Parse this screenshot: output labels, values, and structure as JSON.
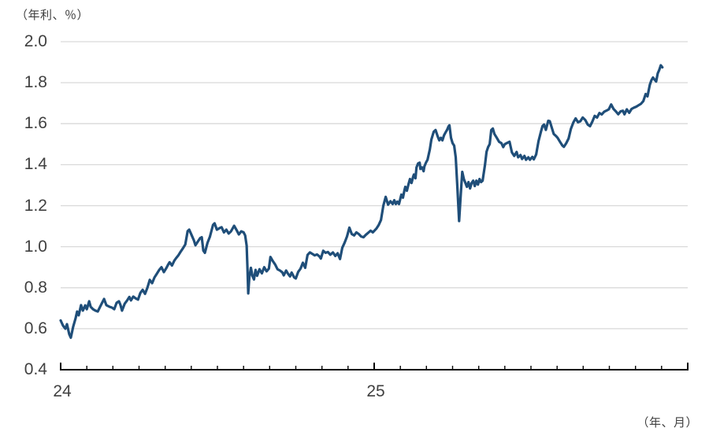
{
  "page": {
    "background": "#ffffff"
  },
  "colors": {
    "line": "#1f4e79",
    "grid": "#d9d9d9",
    "axis": "#000000",
    "text": "#404040"
  },
  "chart_data": {
    "type": "line",
    "title": "",
    "y_unit_label": "（年利、％）",
    "x_unit_label": "（年、月）",
    "grid": true,
    "legend_position": "none",
    "y_axis": {
      "min": 0.4,
      "max": 2.0,
      "step": 0.2,
      "tick_labels": [
        "2.0",
        "1.8",
        "1.6",
        "1.4",
        "1.2",
        "1.0",
        "0.8",
        "0.6",
        "0.4"
      ]
    },
    "x_axis": {
      "total_months": 24,
      "minor_tick_every_months": 1,
      "major_tick_positions_months": [
        0,
        12,
        24
      ],
      "year_labels": [
        {
          "position_months": 0,
          "label": "24"
        },
        {
          "position_months": 12,
          "label": "25"
        }
      ]
    },
    "series": [
      {
        "color": "#1f4e79",
        "points_months_value": [
          [
            0.0,
            0.64
          ],
          [
            0.09,
            0.615
          ],
          [
            0.18,
            0.6
          ],
          [
            0.24,
            0.622
          ],
          [
            0.33,
            0.573
          ],
          [
            0.39,
            0.556
          ],
          [
            0.48,
            0.61
          ],
          [
            0.57,
            0.65
          ],
          [
            0.63,
            0.684
          ],
          [
            0.69,
            0.665
          ],
          [
            0.78,
            0.715
          ],
          [
            0.85,
            0.688
          ],
          [
            0.94,
            0.714
          ],
          [
            1.0,
            0.695
          ],
          [
            1.09,
            0.734
          ],
          [
            1.15,
            0.707
          ],
          [
            1.24,
            0.695
          ],
          [
            1.33,
            0.688
          ],
          [
            1.42,
            0.684
          ],
          [
            1.54,
            0.715
          ],
          [
            1.66,
            0.745
          ],
          [
            1.75,
            0.715
          ],
          [
            1.87,
            0.707
          ],
          [
            1.96,
            0.703
          ],
          [
            2.05,
            0.695
          ],
          [
            2.14,
            0.726
          ],
          [
            2.23,
            0.734
          ],
          [
            2.29,
            0.715
          ],
          [
            2.35,
            0.688
          ],
          [
            2.45,
            0.722
          ],
          [
            2.54,
            0.737
          ],
          [
            2.63,
            0.755
          ],
          [
            2.69,
            0.738
          ],
          [
            2.78,
            0.757
          ],
          [
            2.87,
            0.748
          ],
          [
            2.96,
            0.742
          ],
          [
            3.05,
            0.775
          ],
          [
            3.14,
            0.79
          ],
          [
            3.23,
            0.77
          ],
          [
            3.32,
            0.8
          ],
          [
            3.41,
            0.838
          ],
          [
            3.5,
            0.822
          ],
          [
            3.59,
            0.85
          ],
          [
            3.68,
            0.868
          ],
          [
            3.77,
            0.886
          ],
          [
            3.86,
            0.9
          ],
          [
            3.95,
            0.876
          ],
          [
            4.05,
            0.897
          ],
          [
            4.11,
            0.912
          ],
          [
            4.17,
            0.924
          ],
          [
            4.26,
            0.908
          ],
          [
            4.35,
            0.932
          ],
          [
            4.41,
            0.943
          ],
          [
            4.5,
            0.957
          ],
          [
            4.59,
            0.975
          ],
          [
            4.68,
            0.992
          ],
          [
            4.77,
            1.011
          ],
          [
            4.86,
            1.076
          ],
          [
            4.92,
            1.083
          ],
          [
            5.01,
            1.057
          ],
          [
            5.1,
            1.03
          ],
          [
            5.16,
            1.007
          ],
          [
            5.25,
            1.025
          ],
          [
            5.34,
            1.042
          ],
          [
            5.4,
            1.046
          ],
          [
            5.46,
            0.981
          ],
          [
            5.52,
            0.97
          ],
          [
            5.62,
            1.019
          ],
          [
            5.71,
            1.048
          ],
          [
            5.83,
            1.106
          ],
          [
            5.89,
            1.114
          ],
          [
            5.98,
            1.083
          ],
          [
            6.07,
            1.09
          ],
          [
            6.16,
            1.095
          ],
          [
            6.25,
            1.07
          ],
          [
            6.34,
            1.083
          ],
          [
            6.43,
            1.064
          ],
          [
            6.52,
            1.075
          ],
          [
            6.64,
            1.102
          ],
          [
            6.73,
            1.082
          ],
          [
            6.82,
            1.06
          ],
          [
            6.91,
            1.075
          ],
          [
            7.0,
            1.07
          ],
          [
            7.06,
            1.055
          ],
          [
            7.12,
            1.005
          ],
          [
            7.15,
            0.9
          ],
          [
            7.18,
            0.772
          ],
          [
            7.22,
            0.85
          ],
          [
            7.28,
            0.897
          ],
          [
            7.34,
            0.858
          ],
          [
            7.4,
            0.84
          ],
          [
            7.46,
            0.887
          ],
          [
            7.52,
            0.858
          ],
          [
            7.61,
            0.89
          ],
          [
            7.7,
            0.87
          ],
          [
            7.79,
            0.9
          ],
          [
            7.88,
            0.88
          ],
          [
            7.97,
            0.893
          ],
          [
            8.03,
            0.95
          ],
          [
            8.12,
            0.93
          ],
          [
            8.21,
            0.913
          ],
          [
            8.3,
            0.89
          ],
          [
            8.39,
            0.884
          ],
          [
            8.48,
            0.875
          ],
          [
            8.54,
            0.86
          ],
          [
            8.63,
            0.884
          ],
          [
            8.7,
            0.868
          ],
          [
            8.78,
            0.855
          ],
          [
            8.84,
            0.874
          ],
          [
            8.94,
            0.85
          ],
          [
            9.0,
            0.845
          ],
          [
            9.09,
            0.877
          ],
          [
            9.18,
            0.893
          ],
          [
            9.27,
            0.922
          ],
          [
            9.36,
            0.897
          ],
          [
            9.45,
            0.96
          ],
          [
            9.54,
            0.972
          ],
          [
            9.63,
            0.965
          ],
          [
            9.72,
            0.958
          ],
          [
            9.81,
            0.962
          ],
          [
            9.9,
            0.953
          ],
          [
            9.96,
            0.942
          ],
          [
            10.05,
            0.98
          ],
          [
            10.14,
            0.97
          ],
          [
            10.23,
            0.974
          ],
          [
            10.32,
            0.961
          ],
          [
            10.42,
            0.972
          ],
          [
            10.51,
            0.955
          ],
          [
            10.6,
            0.968
          ],
          [
            10.69,
            0.94
          ],
          [
            10.78,
            0.995
          ],
          [
            10.87,
            1.02
          ],
          [
            10.96,
            1.05
          ],
          [
            11.05,
            1.093
          ],
          [
            11.14,
            1.062
          ],
          [
            11.23,
            1.055
          ],
          [
            11.32,
            1.07
          ],
          [
            11.41,
            1.062
          ],
          [
            11.5,
            1.05
          ],
          [
            11.59,
            1.046
          ],
          [
            11.68,
            1.058
          ],
          [
            11.77,
            1.068
          ],
          [
            11.86,
            1.078
          ],
          [
            11.95,
            1.07
          ],
          [
            12.08,
            1.088
          ],
          [
            12.17,
            1.105
          ],
          [
            12.26,
            1.13
          ],
          [
            12.35,
            1.2
          ],
          [
            12.44,
            1.243
          ],
          [
            12.53,
            1.205
          ],
          [
            12.62,
            1.222
          ],
          [
            12.71,
            1.208
          ],
          [
            12.77,
            1.227
          ],
          [
            12.83,
            1.208
          ],
          [
            12.89,
            1.22
          ],
          [
            12.95,
            1.208
          ],
          [
            13.01,
            1.239
          ],
          [
            13.04,
            1.254
          ],
          [
            13.1,
            1.239
          ],
          [
            13.16,
            1.277
          ],
          [
            13.19,
            1.292
          ],
          [
            13.25,
            1.273
          ],
          [
            13.31,
            1.303
          ],
          [
            13.37,
            1.33
          ],
          [
            13.43,
            1.311
          ],
          [
            13.49,
            1.341
          ],
          [
            13.52,
            1.352
          ],
          [
            13.58,
            1.334
          ],
          [
            13.62,
            1.387
          ],
          [
            13.68,
            1.406
          ],
          [
            13.74,
            1.41
          ],
          [
            13.77,
            1.379
          ],
          [
            13.83,
            1.387
          ],
          [
            13.89,
            1.368
          ],
          [
            13.92,
            1.391
          ],
          [
            13.98,
            1.41
          ],
          [
            14.04,
            1.424
          ],
          [
            14.13,
            1.474
          ],
          [
            14.19,
            1.523
          ],
          [
            14.28,
            1.561
          ],
          [
            14.35,
            1.569
          ],
          [
            14.43,
            1.538
          ],
          [
            14.49,
            1.519
          ],
          [
            14.55,
            1.531
          ],
          [
            14.61,
            1.519
          ],
          [
            14.67,
            1.543
          ],
          [
            14.73,
            1.557
          ],
          [
            14.79,
            1.57
          ],
          [
            14.85,
            1.588
          ],
          [
            14.88,
            1.592
          ],
          [
            14.94,
            1.531
          ],
          [
            15.0,
            1.505
          ],
          [
            15.06,
            1.493
          ],
          [
            15.12,
            1.436
          ],
          [
            15.18,
            1.296
          ],
          [
            15.25,
            1.125
          ],
          [
            15.31,
            1.25
          ],
          [
            15.37,
            1.365
          ],
          [
            15.43,
            1.33
          ],
          [
            15.49,
            1.311
          ],
          [
            15.55,
            1.292
          ],
          [
            15.61,
            1.315
          ],
          [
            15.67,
            1.284
          ],
          [
            15.73,
            1.311
          ],
          [
            15.79,
            1.322
          ],
          [
            15.85,
            1.296
          ],
          [
            15.91,
            1.322
          ],
          [
            15.97,
            1.303
          ],
          [
            16.03,
            1.33
          ],
          [
            16.09,
            1.315
          ],
          [
            16.15,
            1.322
          ],
          [
            16.24,
            1.398
          ],
          [
            16.3,
            1.463
          ],
          [
            16.36,
            1.486
          ],
          [
            16.42,
            1.5
          ],
          [
            16.48,
            1.569
          ],
          [
            16.54,
            1.576
          ],
          [
            16.6,
            1.55
          ],
          [
            16.69,
            1.531
          ],
          [
            16.78,
            1.512
          ],
          [
            16.87,
            1.505
          ],
          [
            16.94,
            1.486
          ],
          [
            17.0,
            1.5
          ],
          [
            17.09,
            1.506
          ],
          [
            17.18,
            1.512
          ],
          [
            17.27,
            1.46
          ],
          [
            17.36,
            1.443
          ],
          [
            17.45,
            1.462
          ],
          [
            17.51,
            1.436
          ],
          [
            17.6,
            1.447
          ],
          [
            17.66,
            1.428
          ],
          [
            17.75,
            1.443
          ],
          [
            17.81,
            1.424
          ],
          [
            17.9,
            1.436
          ],
          [
            17.96,
            1.424
          ],
          [
            18.05,
            1.438
          ],
          [
            18.11,
            1.426
          ],
          [
            18.2,
            1.45
          ],
          [
            18.29,
            1.515
          ],
          [
            18.38,
            1.56
          ],
          [
            18.44,
            1.588
          ],
          [
            18.5,
            1.596
          ],
          [
            18.57,
            1.57
          ],
          [
            18.66,
            1.614
          ],
          [
            18.72,
            1.612
          ],
          [
            18.81,
            1.575
          ],
          [
            18.87,
            1.55
          ],
          [
            18.96,
            1.54
          ],
          [
            19.02,
            1.531
          ],
          [
            19.11,
            1.512
          ],
          [
            19.2,
            1.494
          ],
          [
            19.26,
            1.487
          ],
          [
            19.35,
            1.505
          ],
          [
            19.44,
            1.528
          ],
          [
            19.53,
            1.575
          ],
          [
            19.62,
            1.605
          ],
          [
            19.71,
            1.626
          ],
          [
            19.8,
            1.607
          ],
          [
            19.89,
            1.612
          ],
          [
            19.98,
            1.63
          ],
          [
            20.08,
            1.618
          ],
          [
            20.17,
            1.596
          ],
          [
            20.26,
            1.588
          ],
          [
            20.35,
            1.61
          ],
          [
            20.44,
            1.638
          ],
          [
            20.53,
            1.63
          ],
          [
            20.62,
            1.652
          ],
          [
            20.71,
            1.645
          ],
          [
            20.8,
            1.658
          ],
          [
            20.89,
            1.664
          ],
          [
            20.98,
            1.67
          ],
          [
            21.07,
            1.694
          ],
          [
            21.16,
            1.672
          ],
          [
            21.25,
            1.66
          ],
          [
            21.34,
            1.646
          ],
          [
            21.43,
            1.66
          ],
          [
            21.52,
            1.663
          ],
          [
            21.58,
            1.646
          ],
          [
            21.67,
            1.67
          ],
          [
            21.76,
            1.653
          ],
          [
            21.85,
            1.672
          ],
          [
            21.94,
            1.678
          ],
          [
            22.03,
            1.683
          ],
          [
            22.12,
            1.69
          ],
          [
            22.21,
            1.697
          ],
          [
            22.3,
            1.71
          ],
          [
            22.39,
            1.745
          ],
          [
            22.46,
            1.733
          ],
          [
            22.55,
            1.79
          ],
          [
            22.61,
            1.812
          ],
          [
            22.67,
            1.825
          ],
          [
            22.73,
            1.815
          ],
          [
            22.79,
            1.806
          ],
          [
            22.85,
            1.845
          ],
          [
            22.91,
            1.862
          ],
          [
            22.97,
            1.885
          ],
          [
            23.03,
            1.875
          ]
        ]
      }
    ]
  }
}
